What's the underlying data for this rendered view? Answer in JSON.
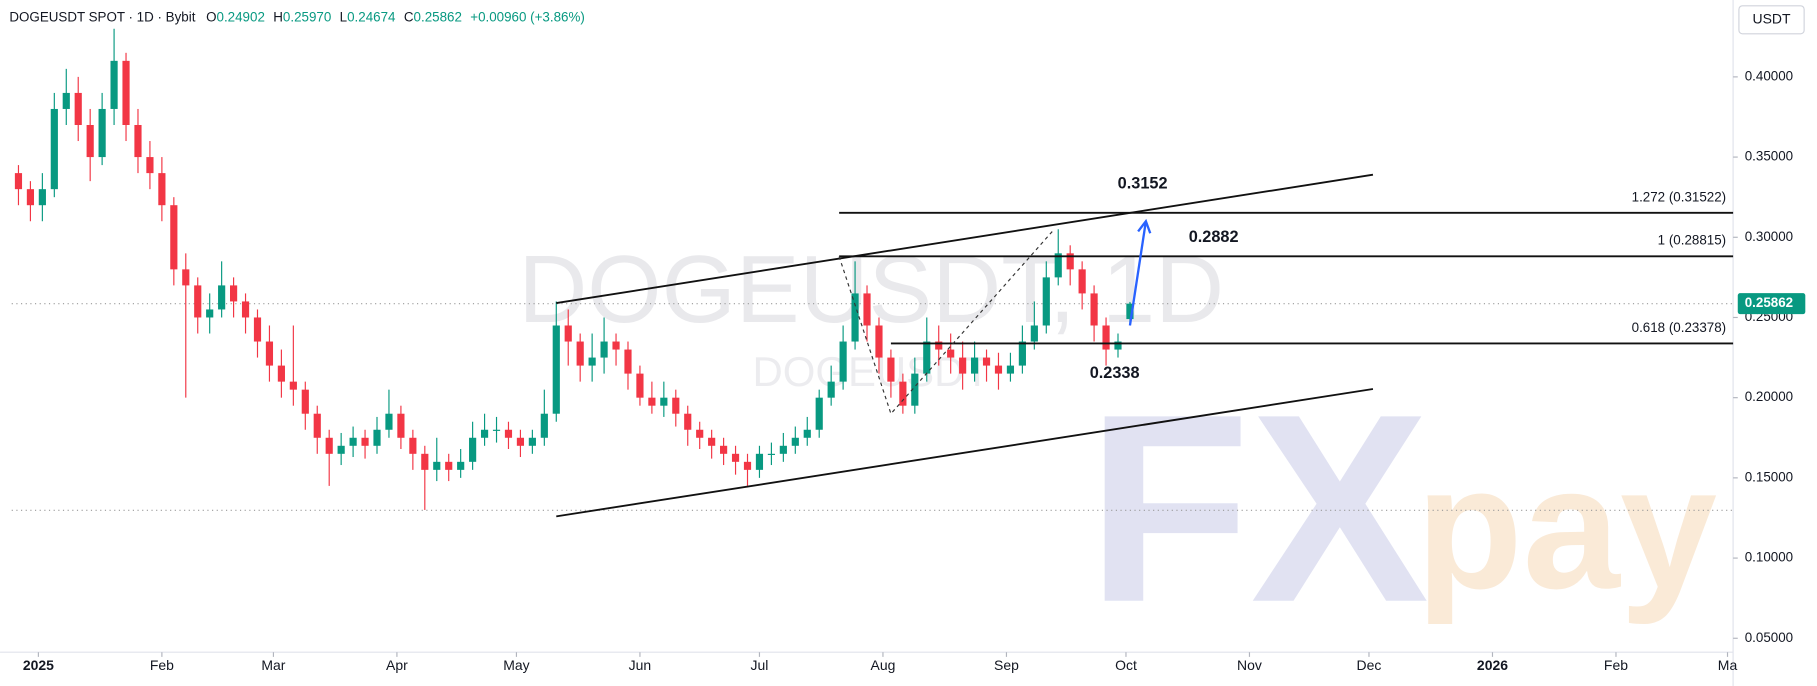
{
  "chart_data": {
    "type": "candlestick",
    "header": {
      "symbol": "DOGEUSDT SPOT · 1D · Bybit",
      "ohlc": [
        {
          "key": "O",
          "value": "0.24902"
        },
        {
          "key": "H",
          "value": "0.25970"
        },
        {
          "key": "L",
          "value": "0.24674"
        },
        {
          "key": "C",
          "value": "0.25862"
        }
      ],
      "change": "+0.00960 (+3.86%)"
    },
    "currency": "USDT",
    "watermark": "DOGEUSDT, 1D",
    "watermark_small": "DOGEUSDT",
    "logo": [
      "FX",
      "pay"
    ],
    "x": [
      -5,
      -2,
      1,
      4,
      7,
      10,
      13,
      16,
      19,
      22,
      25,
      28,
      31,
      34,
      37,
      40,
      43,
      46,
      49,
      52,
      55,
      58,
      61,
      64,
      67,
      70,
      73,
      76,
      79,
      82,
      85,
      88,
      91,
      94,
      97,
      100,
      103,
      106,
      109,
      112,
      115,
      118,
      121,
      124,
      127,
      130,
      133,
      136,
      139,
      142,
      145,
      148,
      151,
      154,
      157,
      160,
      163,
      166,
      169,
      172,
      175,
      178,
      181,
      184,
      187,
      190,
      193,
      196,
      199,
      202,
      205,
      208,
      211,
      214,
      217,
      220,
      223,
      226,
      229,
      232,
      235,
      238,
      241,
      244,
      247,
      250,
      253,
      256,
      259,
      262,
      265,
      268,
      271,
      274
    ],
    "open": [
      0.34,
      0.33,
      0.32,
      0.33,
      0.38,
      0.39,
      0.37,
      0.35,
      0.38,
      0.41,
      0.37,
      0.35,
      0.34,
      0.32,
      0.28,
      0.27,
      0.25,
      0.255,
      0.27,
      0.26,
      0.25,
      0.235,
      0.22,
      0.21,
      0.205,
      0.19,
      0.175,
      0.165,
      0.17,
      0.175,
      0.17,
      0.18,
      0.19,
      0.175,
      0.165,
      0.155,
      0.16,
      0.155,
      0.16,
      0.175,
      0.18,
      0.18,
      0.175,
      0.17,
      0.175,
      0.19,
      0.245,
      0.235,
      0.22,
      0.225,
      0.235,
      0.23,
      0.215,
      0.2,
      0.195,
      0.2,
      0.19,
      0.18,
      0.175,
      0.17,
      0.165,
      0.16,
      0.155,
      0.165,
      0.165,
      0.17,
      0.175,
      0.18,
      0.2,
      0.21,
      0.235,
      0.265,
      0.245,
      0.225,
      0.21,
      0.195,
      0.215,
      0.235,
      0.23,
      0.225,
      0.215,
      0.225,
      0.22,
      0.215,
      0.22,
      0.235,
      0.245,
      0.275,
      0.29,
      0.28,
      0.265,
      0.245,
      0.23,
      0.24902
    ],
    "high": [
      0.345,
      0.335,
      0.34,
      0.39,
      0.405,
      0.4,
      0.38,
      0.39,
      0.43,
      0.415,
      0.38,
      0.36,
      0.35,
      0.325,
      0.29,
      0.275,
      0.265,
      0.285,
      0.275,
      0.265,
      0.255,
      0.245,
      0.23,
      0.245,
      0.21,
      0.195,
      0.18,
      0.178,
      0.182,
      0.18,
      0.188,
      0.205,
      0.195,
      0.18,
      0.17,
      0.175,
      0.165,
      0.168,
      0.185,
      0.19,
      0.188,
      0.185,
      0.18,
      0.18,
      0.205,
      0.26,
      0.255,
      0.24,
      0.24,
      0.25,
      0.24,
      0.235,
      0.22,
      0.21,
      0.21,
      0.205,
      0.195,
      0.185,
      0.18,
      0.175,
      0.17,
      0.165,
      0.17,
      0.172,
      0.178,
      0.182,
      0.188,
      0.205,
      0.22,
      0.245,
      0.285,
      0.27,
      0.25,
      0.23,
      0.215,
      0.225,
      0.25,
      0.245,
      0.24,
      0.235,
      0.235,
      0.23,
      0.228,
      0.228,
      0.245,
      0.26,
      0.285,
      0.305,
      0.295,
      0.285,
      0.27,
      0.25,
      0.24,
      0.2597
    ],
    "low": [
      0.32,
      0.31,
      0.31,
      0.325,
      0.37,
      0.36,
      0.335,
      0.345,
      0.37,
      0.36,
      0.34,
      0.33,
      0.31,
      0.27,
      0.2,
      0.24,
      0.24,
      0.25,
      0.25,
      0.24,
      0.225,
      0.21,
      0.2,
      0.195,
      0.18,
      0.165,
      0.145,
      0.158,
      0.163,
      0.162,
      0.165,
      0.175,
      0.168,
      0.155,
      0.13,
      0.148,
      0.148,
      0.15,
      0.155,
      0.17,
      0.172,
      0.168,
      0.163,
      0.165,
      0.17,
      0.185,
      0.22,
      0.21,
      0.21,
      0.215,
      0.22,
      0.205,
      0.195,
      0.19,
      0.188,
      0.182,
      0.17,
      0.168,
      0.162,
      0.158,
      0.152,
      0.145,
      0.15,
      0.158,
      0.16,
      0.165,
      0.17,
      0.175,
      0.195,
      0.205,
      0.23,
      0.235,
      0.215,
      0.2,
      0.19,
      0.19,
      0.21,
      0.22,
      0.215,
      0.205,
      0.21,
      0.21,
      0.205,
      0.21,
      0.215,
      0.23,
      0.24,
      0.27,
      0.27,
      0.255,
      0.235,
      0.22,
      0.225,
      0.24674
    ],
    "close": [
      0.33,
      0.32,
      0.33,
      0.38,
      0.39,
      0.37,
      0.35,
      0.38,
      0.41,
      0.37,
      0.35,
      0.34,
      0.32,
      0.28,
      0.27,
      0.25,
      0.255,
      0.27,
      0.26,
      0.25,
      0.235,
      0.22,
      0.21,
      0.205,
      0.19,
      0.175,
      0.165,
      0.17,
      0.175,
      0.17,
      0.18,
      0.19,
      0.175,
      0.165,
      0.155,
      0.16,
      0.155,
      0.16,
      0.175,
      0.18,
      0.18,
      0.175,
      0.17,
      0.175,
      0.19,
      0.245,
      0.235,
      0.22,
      0.225,
      0.235,
      0.23,
      0.215,
      0.2,
      0.195,
      0.2,
      0.19,
      0.18,
      0.175,
      0.17,
      0.165,
      0.16,
      0.155,
      0.165,
      0.165,
      0.17,
      0.175,
      0.18,
      0.2,
      0.21,
      0.235,
      0.265,
      0.245,
      0.225,
      0.21,
      0.195,
      0.215,
      0.235,
      0.23,
      0.225,
      0.215,
      0.225,
      0.22,
      0.215,
      0.22,
      0.235,
      0.245,
      0.275,
      0.29,
      0.28,
      0.265,
      0.245,
      0.23,
      0.235,
      0.25862
    ],
    "up_color": "#089981",
    "down_color": "#f23645",
    "xlim": [
      -6.7,
      425.4
    ],
    "xticks": [
      {
        "value": 0,
        "label": "2025"
      },
      {
        "value": 31,
        "label": "Feb"
      },
      {
        "value": 59,
        "label": "Mar"
      },
      {
        "value": 90,
        "label": "Apr"
      },
      {
        "value": 120,
        "label": "May"
      },
      {
        "value": 151,
        "label": "Jun"
      },
      {
        "value": 181,
        "label": "Jul"
      },
      {
        "value": 212,
        "label": "Aug"
      },
      {
        "value": 243,
        "label": "Sep"
      },
      {
        "value": 273,
        "label": "Oct"
      },
      {
        "value": 304,
        "label": "Nov"
      },
      {
        "value": 334,
        "label": "Dec"
      },
      {
        "value": 365,
        "label": "2026"
      },
      {
        "value": 396,
        "label": "Feb"
      },
      {
        "value": 424,
        "label": "Ma"
      }
    ],
    "ylim": [
      0.0413,
      0.4443
    ],
    "yticks": [
      {
        "value": 0.05,
        "label": "0.05000"
      },
      {
        "value": 0.1,
        "label": "0.10000"
      },
      {
        "value": 0.15,
        "label": "0.15000"
      },
      {
        "value": 0.2,
        "label": "0.20000"
      },
      {
        "value": 0.25,
        "label": "0.25000"
      },
      {
        "value": 0.3,
        "label": "0.30000"
      },
      {
        "value": 0.35,
        "label": "0.35000"
      },
      {
        "value": 0.4,
        "label": "0.40000"
      }
    ],
    "last_price": {
      "value": 0.25862,
      "label": "0.25862"
    },
    "low_line": 0.1298,
    "trendlines": [
      {
        "x": [
          130,
          335
        ],
        "y": [
          0.259,
          0.339
        ]
      },
      {
        "x": [
          130,
          335
        ],
        "y": [
          0.126,
          0.2054
        ]
      }
    ],
    "fib_levels": [
      {
        "value": 0.31522,
        "label": "1.272 (0.31522)",
        "from": 201
      },
      {
        "value": 0.28815,
        "label": "1 (0.28815)",
        "from": 201
      },
      {
        "value": 0.23378,
        "label": "0.618 (0.23378)",
        "from": 214
      }
    ],
    "fib_path": {
      "x": [
        201,
        214,
        255
      ],
      "y": [
        0.288,
        0.19,
        0.305
      ]
    },
    "arrow": {
      "x": [
        274,
        278
      ],
      "y": [
        0.245,
        0.31
      ]
    },
    "annotations": [
      "0.3152",
      "0.2882",
      "0.2338"
    ]
  }
}
